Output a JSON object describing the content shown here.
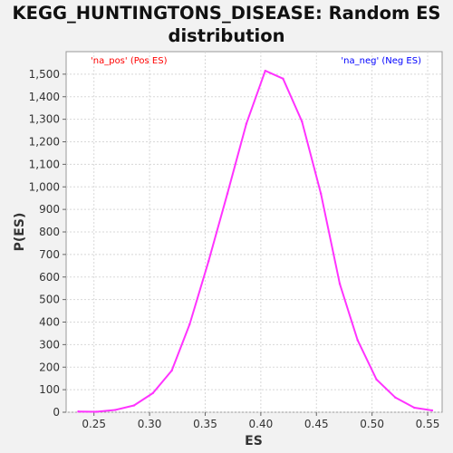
{
  "chart_data": {
    "type": "line",
    "title_line1": "KEGG_HUNTINGTONS_DISEASE: Random ES",
    "title_line2": "distribution",
    "xlabel": "ES",
    "ylabel": "P(ES)",
    "xlim": [
      0.225,
      0.563
    ],
    "ylim": [
      0,
      1600
    ],
    "x_ticks": [
      0.25,
      0.3,
      0.35,
      0.4,
      0.45,
      0.5,
      0.55
    ],
    "x_tick_labels": [
      "0.25",
      "0.30",
      "0.35",
      "0.40",
      "0.45",
      "0.50",
      "0.55"
    ],
    "y_ticks": [
      0,
      100,
      200,
      300,
      400,
      500,
      600,
      700,
      800,
      900,
      1000,
      1100,
      1200,
      1300,
      1400,
      1500
    ],
    "y_tick_labels": [
      "0",
      "100",
      "200",
      "300",
      "400",
      "500",
      "600",
      "700",
      "800",
      "900",
      "1,000",
      "1,100",
      "1,200",
      "1,300",
      "1,400",
      "1,500"
    ],
    "grid": true,
    "legend": [
      {
        "label": "'na_pos' (Pos ES)",
        "color": "#ff0000",
        "placement": "top-left"
      },
      {
        "label": "'na_neg' (Neg ES)",
        "color": "#0000ff",
        "placement": "top-right"
      }
    ],
    "series": [
      {
        "color": "#ff33ff",
        "x": [
          0.236,
          0.252,
          0.269,
          0.286,
          0.303,
          0.32,
          0.336,
          0.353,
          0.37,
          0.387,
          0.404,
          0.42,
          0.437,
          0.454,
          0.471,
          0.487,
          0.504,
          0.521,
          0.538,
          0.554
        ],
        "y": [
          3,
          2,
          10,
          30,
          85,
          185,
          390,
          670,
          970,
          1280,
          1515,
          1480,
          1290,
          970,
          570,
          320,
          145,
          65,
          20,
          8
        ]
      }
    ]
  }
}
